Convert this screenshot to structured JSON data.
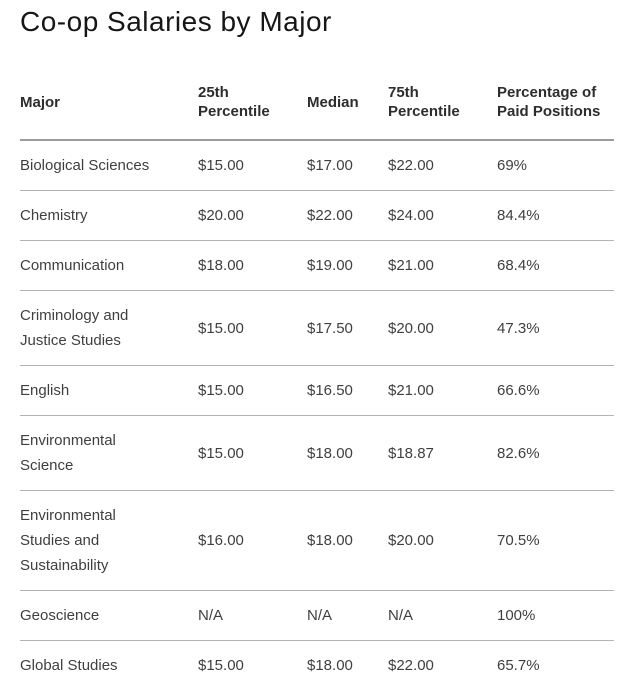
{
  "page": {
    "title": "Co-op Salaries by Major"
  },
  "chart_data": {
    "type": "table",
    "title": "Co-op Salaries by Major",
    "columns": [
      "Major",
      "25th Percentile",
      "Median",
      "75th Percentile",
      "Percentage of Paid Positions"
    ],
    "rows": [
      [
        "Biological Sciences",
        "$15.00",
        "$17.00",
        "$22.00",
        "69%"
      ],
      [
        "Chemistry",
        "$20.00",
        "$22.00",
        "$24.00",
        "84.4%"
      ],
      [
        "Communication",
        "$18.00",
        "$19.00",
        "$21.00",
        "68.4%"
      ],
      [
        "Criminology and Justice Studies",
        "$15.00",
        "$17.50",
        "$20.00",
        "47.3%"
      ],
      [
        "English",
        "$15.00",
        "$16.50",
        "$21.00",
        "66.6%"
      ],
      [
        "Environmental Science",
        "$15.00",
        "$18.00",
        "$18.87",
        "82.6%"
      ],
      [
        "Environmental Studies and Sustainability",
        "$16.00",
        "$18.00",
        "$20.00",
        "70.5%"
      ],
      [
        "Geoscience",
        "N/A",
        "N/A",
        "N/A",
        "100%"
      ],
      [
        "Global Studies",
        "$15.00",
        "$18.00",
        "$22.00",
        "65.7%"
      ]
    ],
    "notes": {
      "na_value": "N/A",
      "currency_format": "USD hourly",
      "last_row_clipped": "Global Studies row is cut off at the bottom edge of the viewport"
    },
    "colors": {
      "title_text": "#161616",
      "header_text": "#2d2d2d",
      "body_text": "#3f3f3f",
      "header_rule": "#9c9c9c",
      "row_rule": "#b3b3b3",
      "background": "#ffffff"
    }
  }
}
